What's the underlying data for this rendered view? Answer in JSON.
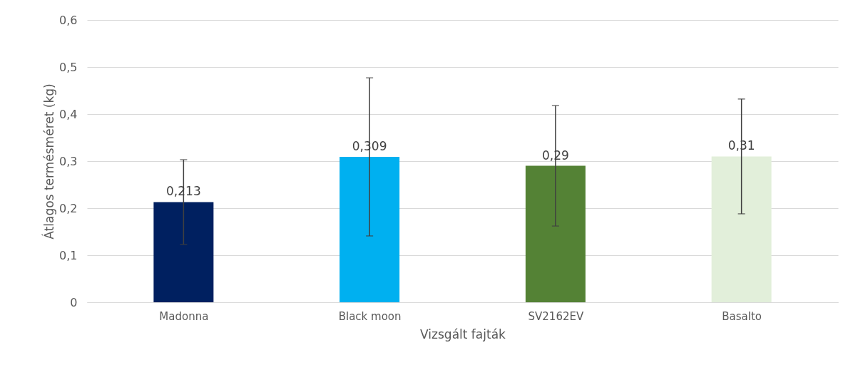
{
  "chart_data": {
    "type": "bar",
    "xlabel": "Vizsgált fajták",
    "ylabel": "Átlagos termésméret (kg)",
    "categories": [
      "Madonna",
      "Black moon",
      "SV2162EV",
      "Basalto"
    ],
    "values": [
      0.213,
      0.309,
      0.29,
      0.31
    ],
    "colors": [
      "#002060",
      "#00b0f0",
      "#548235",
      "#e2efda"
    ],
    "errors": [
      0.09,
      0.168,
      0.128,
      0.122
    ],
    "value_labels": [
      "0,213",
      "0,309",
      "0,29",
      "0,31"
    ],
    "ylim": [
      0,
      0.6
    ],
    "yticks": [
      0,
      {
        "value": 0.1,
        "label": "0,1"
      },
      {
        "value": 0.2,
        "label": "0,2"
      },
      {
        "value": 0.3,
        "label": "0,3"
      },
      {
        "value": 0.4,
        "label": "0,4"
      },
      {
        "value": 0.5,
        "label": "0,5"
      },
      {
        "value": 0.6,
        "label": "0,6"
      }
    ],
    "grid": "y"
  }
}
